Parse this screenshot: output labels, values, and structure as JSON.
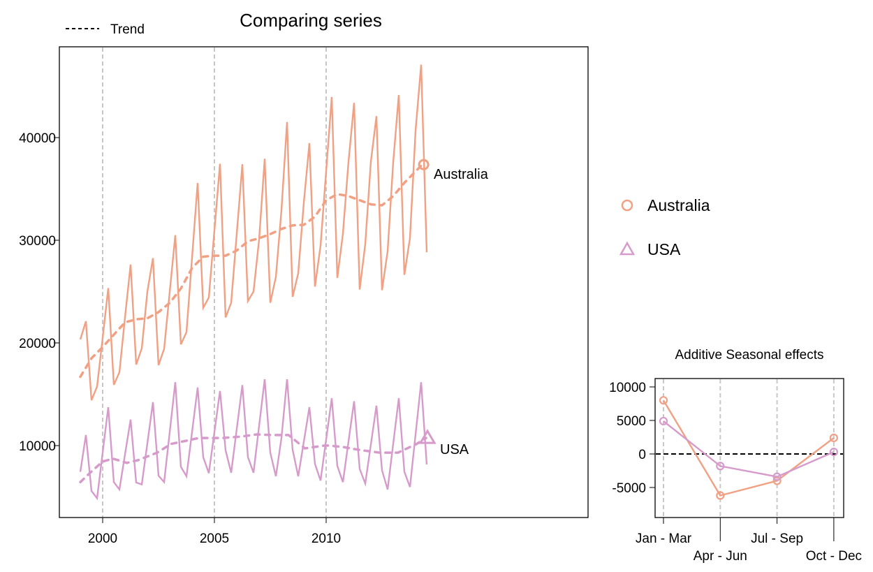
{
  "chart_data": [
    {
      "type": "line",
      "title": "Comparing series",
      "xlabel": "",
      "ylabel": "",
      "x_ticks": [
        "2000",
        "2005",
        "2010"
      ],
      "x_tick_values": [
        2000,
        2005,
        2010
      ],
      "y_ticks": [
        "10000",
        "20000",
        "30000",
        "40000"
      ],
      "y_tick_values": [
        10000,
        20000,
        30000,
        40000
      ],
      "xlim": [
        1998.1,
        2021.7
      ],
      "ylim": [
        3400,
        47700
      ],
      "grid": "vertical dashed at x ticks",
      "legend": {
        "placement": "top-left",
        "entries": [
          {
            "label": "Trend",
            "style": "dashed",
            "color": "#000000"
          }
        ]
      },
      "right_legend": {
        "placement": "right",
        "entries": [
          {
            "label": "Australia",
            "marker": "circle",
            "color": "#f1a083",
            "text_color": "#a0522d"
          },
          {
            "label": "USA",
            "marker": "triangle",
            "color": "#d69bcb",
            "text_color": "#8e4585"
          }
        ]
      },
      "x": [
        1999,
        1999.25,
        1999.5,
        1999.75,
        2000,
        2000.25,
        2000.5,
        2000.75,
        2001,
        2001.25,
        2001.5,
        2001.75,
        2002,
        2002.25,
        2002.5,
        2002.75,
        2003,
        2003.25,
        2003.5,
        2003.75,
        2004,
        2004.25,
        2004.5,
        2004.75,
        2005,
        2005.25,
        2005.5,
        2005.75,
        2006,
        2006.25,
        2006.5,
        2006.75,
        2007,
        2007.25,
        2007.5,
        2007.75,
        2008,
        2008.25,
        2008.5,
        2008.75,
        2009,
        2009.25,
        2009.5,
        2009.75,
        2010,
        2010.25,
        2010.5,
        2010.75,
        2011,
        2011.25,
        2011.5,
        2011.75,
        2012,
        2012.25,
        2012.5,
        2012.75,
        2013,
        2013.25,
        2013.5,
        2013.75,
        2014,
        2014.25,
        2014.5
      ],
      "series": [
        {
          "name": "Australia",
          "color": "#f1a083",
          "label_color": "#a0522d",
          "values": [
            20340,
            22110,
            14420,
            15750,
            20500,
            25340,
            15920,
            17140,
            22500,
            27630,
            17890,
            19470,
            25000,
            28260,
            17840,
            19420,
            24970,
            30500,
            19860,
            21050,
            28320,
            35580,
            23420,
            24420,
            30950,
            37450,
            22480,
            23910,
            30640,
            37400,
            24080,
            25000,
            30070,
            37940,
            23910,
            26430,
            32930,
            41520,
            24490,
            26780,
            33650,
            39460,
            25480,
            29490,
            36740,
            43950,
            26340,
            30640,
            37650,
            43380,
            25200,
            29630,
            37650,
            42090,
            25140,
            28920,
            37600,
            44150,
            26630,
            30210,
            40660,
            47100,
            28840
          ],
          "trend": [
            [
              1999.0,
              16700
            ],
            [
              1999.5,
              18500
            ],
            [
              2000.0,
              19600
            ],
            [
              2000.5,
              20800
            ],
            [
              2001.0,
              22000
            ],
            [
              2001.5,
              22300
            ],
            [
              2002.0,
              22400
            ],
            [
              2002.5,
              23000
            ],
            [
              2003.0,
              23900
            ],
            [
              2003.5,
              25300
            ],
            [
              2004.0,
              27300
            ],
            [
              2004.5,
              28400
            ],
            [
              2005.0,
              28500
            ],
            [
              2005.5,
              28500
            ],
            [
              2006.0,
              29000
            ],
            [
              2006.5,
              29900
            ],
            [
              2007.0,
              30200
            ],
            [
              2007.5,
              30600
            ],
            [
              2008.0,
              31100
            ],
            [
              2008.5,
              31450
            ],
            [
              2009.0,
              31500
            ],
            [
              2009.5,
              32300
            ],
            [
              2010.0,
              33900
            ],
            [
              2010.5,
              34500
            ],
            [
              2011.0,
              34300
            ],
            [
              2011.5,
              33900
            ],
            [
              2012.0,
              33500
            ],
            [
              2012.5,
              33400
            ],
            [
              2013.0,
              34300
            ],
            [
              2013.5,
              35600
            ],
            [
              2014.3,
              37370
            ]
          ]
        },
        {
          "name": "USA",
          "color": "#d69bcb",
          "label_color": "#8e4585",
          "values": [
            7440,
            11030,
            5580,
            4870,
            9320,
            13740,
            6440,
            5730,
            9140,
            12540,
            6400,
            6220,
            10220,
            14230,
            7070,
            6440,
            11310,
            16180,
            7930,
            7010,
            11330,
            15660,
            8880,
            7310,
            11310,
            15320,
            9540,
            7360,
            11630,
            15890,
            8880,
            7360,
            11910,
            16460,
            9310,
            7010,
            10740,
            16460,
            9590,
            7010,
            10370,
            13740,
            8220,
            6590,
            10600,
            14610,
            8020,
            6440,
            10400,
            14320,
            7730,
            6300,
            10100,
            13890,
            7590,
            5730,
            10170,
            14610,
            7450,
            5960,
            11070,
            16180,
            8160
          ],
          "trend": [
            [
              1999.0,
              6440
            ],
            [
              1999.42,
              7310
            ],
            [
              2000.0,
              8450
            ],
            [
              2000.46,
              8730
            ],
            [
              2001.08,
              8310
            ],
            [
              2001.6,
              8590
            ],
            [
              2002.44,
              9310
            ],
            [
              2003.06,
              10160
            ],
            [
              2003.69,
              10450
            ],
            [
              2004.31,
              10740
            ],
            [
              2004.73,
              10740
            ],
            [
              2005.35,
              10740
            ],
            [
              2006.19,
              10880
            ],
            [
              2006.9,
              11090
            ],
            [
              2007.59,
              11030
            ],
            [
              2008.32,
              11030
            ],
            [
              2009.05,
              9730
            ],
            [
              2009.98,
              10020
            ],
            [
              2010.72,
              9880
            ],
            [
              2011.45,
              9590
            ],
            [
              2012.39,
              9310
            ],
            [
              2013.22,
              9310
            ],
            [
              2014.05,
              10160
            ],
            [
              2014.47,
              10740
            ]
          ]
        }
      ]
    },
    {
      "type": "line",
      "title": "Additive Seasonal effects",
      "categories": [
        "Jan - Mar",
        "Apr - Jun",
        "Jul - Sep",
        "Oct - Dec"
      ],
      "y_ticks": [
        "-5000",
        "0",
        "5000",
        "10000"
      ],
      "y_tick_values": [
        -5000,
        0,
        5000,
        10000
      ],
      "ylim": [
        -9300,
        11200
      ],
      "reference_line": 0,
      "grid": "vertical dashed at categories",
      "series": [
        {
          "name": "Australia",
          "color": "#f1a083",
          "values": [
            8000,
            -6200,
            -4000,
            2400
          ]
        },
        {
          "name": "USA",
          "color": "#d69bcb",
          "values": [
            4900,
            -1800,
            -3400,
            300
          ]
        }
      ]
    }
  ]
}
